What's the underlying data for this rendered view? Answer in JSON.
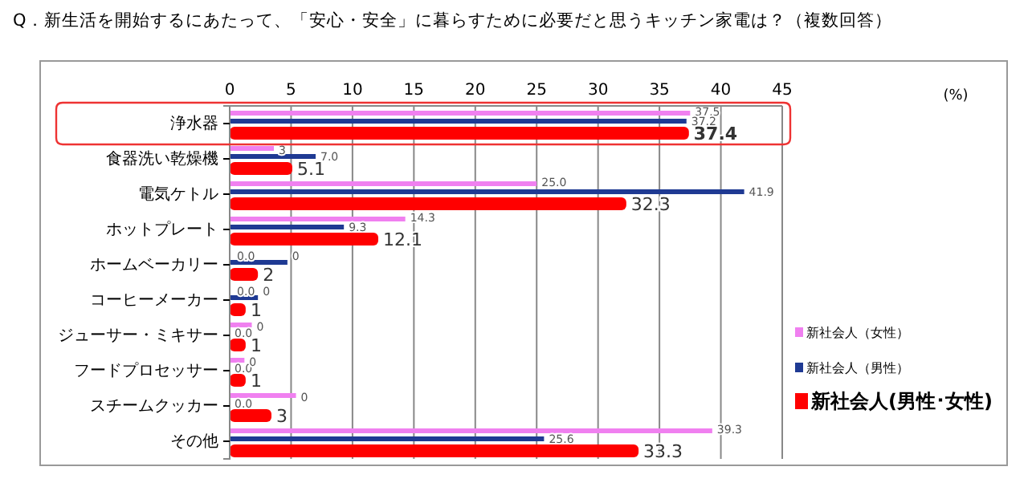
{
  "chart_data": {
    "type": "bar",
    "orientation": "horizontal",
    "title": "Q．新生活を開始するにあたって、「安心・安全」に暮らすために必要だと思うキッチン家電は？（複数回答）",
    "annotations": [
      "(%)",
      {
        "text": "3",
        "x": 3.6,
        "y": "食器洗い乾燥機"
      },
      {
        "text": "0",
        "x": 4.7,
        "y": "ホームベーカリー"
      },
      {
        "text": "0.0",
        "x": 0.2,
        "y": "ホームベーカリー"
      },
      {
        "text": "0",
        "x": 2.3,
        "y": "コーヒーメーカー"
      },
      {
        "text": "0.0",
        "x": 0.2,
        "y": "コーヒーメーカー"
      },
      {
        "text": "0",
        "x": 1.8,
        "y": "ジューサー・ミキサー"
      },
      {
        "text": "0",
        "x": 1.2,
        "y": "フードプロセッサー"
      },
      {
        "text": "0",
        "x": 5.4,
        "y": "スチームクッカー"
      }
    ],
    "categories": [
      "浄水器",
      "食器洗い乾燥機",
      "電気ケトル",
      "ホットプレート",
      "ホームベーカリー",
      "コーヒーメーカー",
      "ジューサー・ミキサー",
      "フードプロセッサー",
      "スチームクッカー",
      "その他"
    ],
    "series": [
      {
        "name": "新社会人（女性）",
        "color": "#f080f0",
        "values": [
          37.5,
          3.6,
          25.0,
          14.3,
          0,
          0,
          1.8,
          1.2,
          5.4,
          39.3
        ],
        "value_labels": [
          "37.5",
          null,
          "25.0",
          "14.3",
          null,
          null,
          null,
          null,
          null,
          "39.3"
        ]
      },
      {
        "name": "新社会人（男性）",
        "color": "#1f3a93",
        "values": [
          37.2,
          7.0,
          41.9,
          9.3,
          4.7,
          2.3,
          0,
          0,
          0,
          25.6
        ],
        "value_labels": [
          "37.2",
          "7.0",
          "41.9",
          "9.3",
          null,
          null,
          "0.0",
          "0.0",
          "0.0",
          "25.6"
        ]
      },
      {
        "name": "新社会人(男性･女性)",
        "color": "#ff0000",
        "values": [
          37.4,
          5.1,
          32.3,
          12.1,
          2.3,
          1.3,
          1.3,
          1.3,
          3.4,
          33.3
        ],
        "value_labels": [
          "37.4",
          "5.1",
          "32.3",
          "12.1",
          "2",
          "1",
          "1",
          "1",
          "3",
          "33.3"
        ]
      }
    ],
    "xlim": [
      0,
      45
    ],
    "xticks": [
      0,
      5,
      10,
      15,
      20,
      25,
      30,
      35,
      40,
      45
    ],
    "grid": "x",
    "legend": "right"
  }
}
